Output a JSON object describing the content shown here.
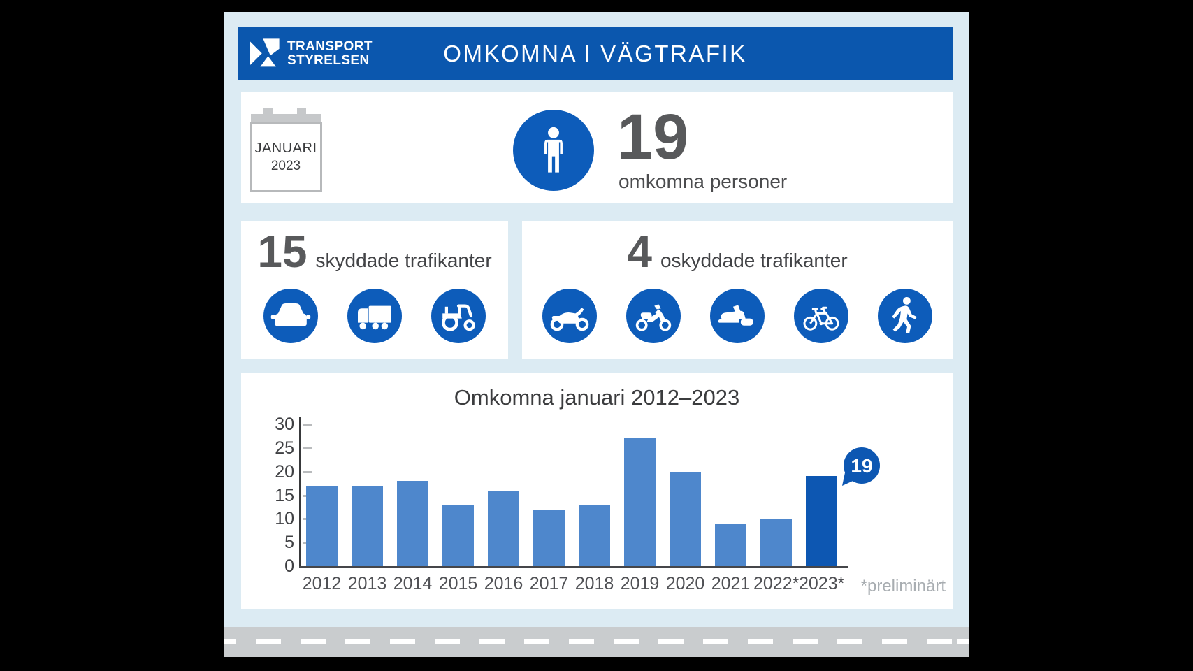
{
  "header": {
    "logo_line1": "TRANSPORT",
    "logo_line2": "STYRELSEN",
    "title": "OMKOMNA I VÄGTRAFIK"
  },
  "summary": {
    "month": "JANUARI",
    "year": "2023",
    "count": "19",
    "count_label": "omkomna personer",
    "icon": "person-icon"
  },
  "protected_road_users": {
    "count": "15",
    "label": "skyddade trafikanter",
    "icons": [
      "car-icon",
      "truck-icon",
      "tractor-icon"
    ]
  },
  "unprotected_road_users": {
    "count": "4",
    "label": "oskyddade trafikanter",
    "icons": [
      "motorcycle-icon",
      "moped-icon",
      "snowmobile-icon",
      "bicycle-icon",
      "pedestrian-icon"
    ]
  },
  "chart_data": {
    "type": "bar",
    "title": "Omkomna januari 2012–2023",
    "categories": [
      "2012",
      "2013",
      "2014",
      "2015",
      "2016",
      "2017",
      "2018",
      "2019",
      "2020",
      "2021",
      "2022*",
      "2023*"
    ],
    "values": [
      17,
      17,
      18,
      13,
      16,
      12,
      13,
      27,
      20,
      9,
      10,
      19
    ],
    "xlabel": "",
    "ylabel": "",
    "ylim": [
      0,
      30
    ],
    "yticks": [
      0,
      5,
      10,
      15,
      20,
      25,
      30
    ],
    "grid": false,
    "legend": false,
    "bar_color": "#4e87cc",
    "highlight_index": 11,
    "highlight_color": "#0d57b2",
    "callout": {
      "value": "19"
    },
    "footnote": "*preliminärt"
  },
  "colors": {
    "background": "#000000",
    "card": "#dcebf3",
    "header_blue": "#0b57ae",
    "icon_blue": "#0d5cba",
    "bar_blue": "#4e87cc",
    "dark_blue": "#0d57b2",
    "number_gray": "#58595b",
    "road_gray": "#c9ccce"
  }
}
